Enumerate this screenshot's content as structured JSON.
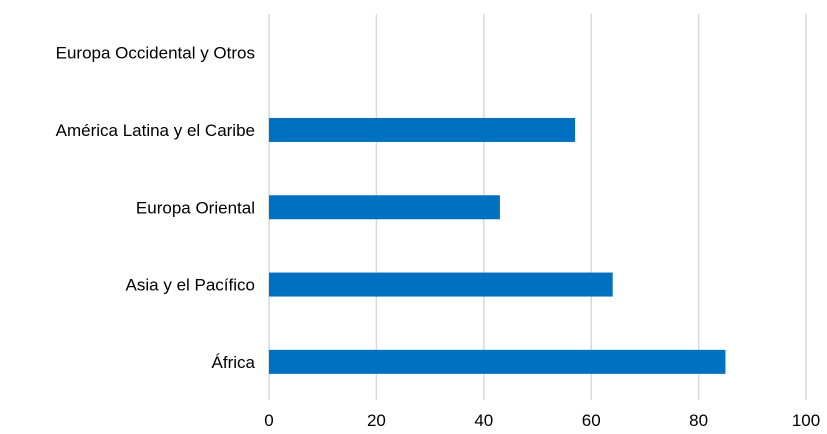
{
  "chart_data": {
    "type": "bar",
    "orientation": "horizontal",
    "categories": [
      "Europa Occidental y Otros",
      "América Latina y el Caribe",
      "Europa Oriental",
      "Asia y el Pacífico",
      "África"
    ],
    "values": [
      0,
      57,
      43,
      64,
      85
    ],
    "xlim": [
      0,
      100
    ],
    "xticks": [
      "0",
      "20",
      "40",
      "60",
      "80",
      "100"
    ],
    "title": "",
    "xlabel": "",
    "ylabel": "",
    "grid": "vertical",
    "legend": "none",
    "colors": {
      "bar": "#0070C0",
      "grid": "#D9D9D9"
    }
  }
}
